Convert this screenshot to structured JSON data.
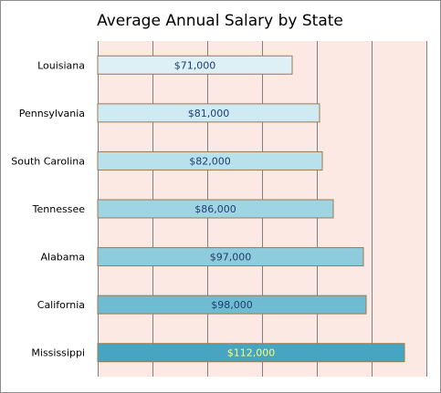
{
  "chart_data": {
    "type": "bar",
    "orientation": "horizontal",
    "title": "Average Annual Salary by State",
    "xlabel": "",
    "ylabel": "",
    "categories": [
      "Louisiana",
      "Pennsylvania",
      "South Carolina",
      "Tennessee",
      "Alabama",
      "California",
      "Mississippi"
    ],
    "values": [
      71000,
      81000,
      82000,
      86000,
      97000,
      98000,
      112000
    ],
    "data_labels": [
      "$71,000",
      "$81,000",
      "$82,000",
      "$86,000",
      "$97,000",
      "$98,000",
      "$112,000"
    ],
    "xlim": [
      0,
      120000
    ],
    "grid": true,
    "legend": "none",
    "colors": {
      "plot_background": "#fde9e4",
      "gridline": "#808080",
      "bar_border": "#9a7b50",
      "bar_fills": [
        "#dcf0f6",
        "#cfeaf2",
        "#b8e1ec",
        "#9fd4e3",
        "#8ecbdc",
        "#6fbcd2",
        "#45a5c3"
      ],
      "label_colors": [
        "#1f3e6e",
        "#1f3e6e",
        "#1f3e6e",
        "#1f3e6e",
        "#1f3e6e",
        "#1f3e6e",
        "#ffff66"
      ]
    }
  }
}
